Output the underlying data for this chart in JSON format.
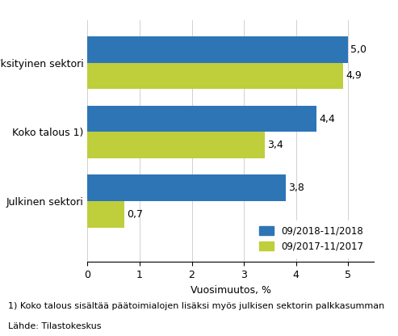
{
  "categories": [
    "Julkinen sektori",
    "Koko talous 1)",
    "Yksityinen sektori"
  ],
  "series": [
    {
      "label": "09/2018-11/2018",
      "color": "#2E75B6",
      "values": [
        3.8,
        4.4,
        5.0
      ]
    },
    {
      "label": "09/2017-11/2017",
      "color": "#BFCE3B",
      "values": [
        0.7,
        3.4,
        4.9
      ]
    }
  ],
  "xlabel": "Vuosimuutos, %",
  "xlim": [
    0,
    5.5
  ],
  "xticks": [
    0,
    1,
    2,
    3,
    4,
    5
  ],
  "footnote_line1": "1) Koko talous sisältää päätoimialojen lisäksi myös julkisen sektorin palkkasumman",
  "footnote_line2": "Lähde: Tilastokeskus",
  "bar_height": 0.38,
  "label_fontsize": 9,
  "tick_fontsize": 9,
  "footnote_fontsize": 8
}
